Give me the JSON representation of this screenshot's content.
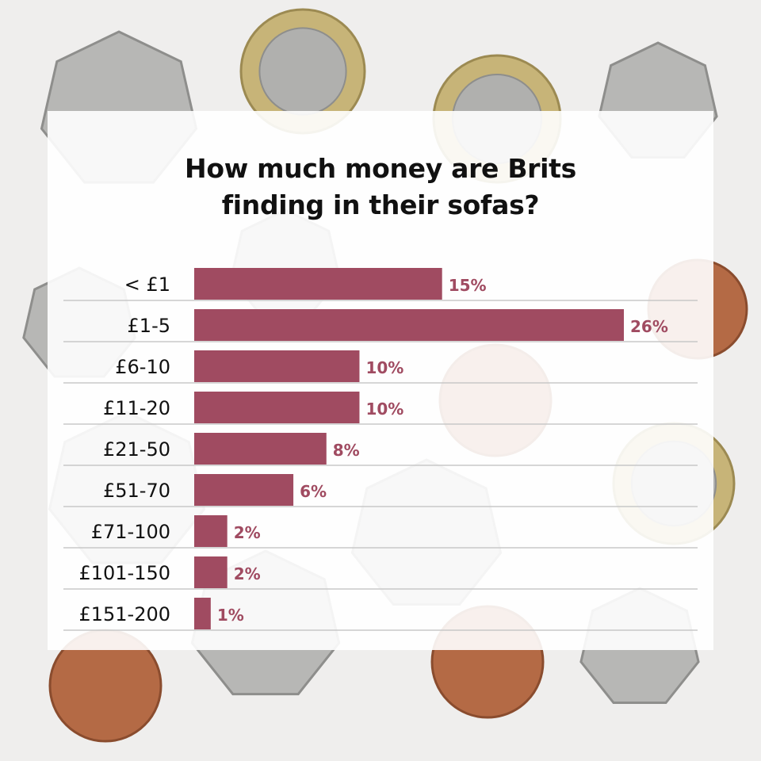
{
  "title_line1": "How much money are Brits",
  "title_line2": "finding in their sofas?",
  "colors": {
    "bar": "#a04b61",
    "label": "#a04b61",
    "background": "#efeeed"
  },
  "chart_data": {
    "type": "bar",
    "orientation": "horizontal",
    "title": "How much money are Brits finding in their sofas?",
    "categories": [
      "< £1",
      "£1-5",
      "£6-10",
      "£11-20",
      "£21-50",
      "£51-70",
      "£71-100",
      "£101-150",
      "£151-200"
    ],
    "values": [
      15,
      26,
      10,
      10,
      8,
      6,
      2,
      2,
      1
    ],
    "value_labels": [
      "15%",
      "26%",
      "10%",
      "10%",
      "8%",
      "6%",
      "2%",
      "2%",
      "1%"
    ],
    "xlim": [
      0,
      26
    ],
    "grid": false
  }
}
